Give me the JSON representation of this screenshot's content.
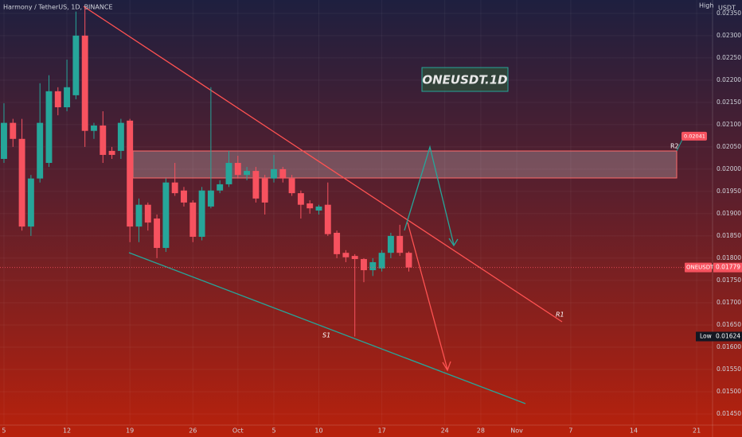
{
  "chart_data": {
    "type": "candlestick",
    "title": "Harmony / TetherUS, 1D, BINANCE",
    "annotation": "ONEUSDT.1D",
    "symbol": "ONEUSDT",
    "currency": "USDT",
    "high_label": "High",
    "low_label": "Low",
    "low_value": 0.01624,
    "last_price": 0.01779,
    "r2_value": 0.02041,
    "r1_label": "R1",
    "r2_label": "R2",
    "s1_label": "S1",
    "up_color": "#26a69a",
    "down_color": "#f7525f",
    "x": [
      0,
      1,
      2,
      3,
      4,
      5,
      6,
      7,
      8,
      9,
      10,
      11,
      12,
      13,
      14,
      15,
      16,
      17,
      18,
      19,
      20,
      21,
      22,
      23,
      24,
      25,
      26,
      27,
      28,
      29,
      30,
      31,
      32,
      33,
      34,
      35,
      36,
      37,
      38,
      39,
      40,
      41,
      42,
      43,
      44,
      45
    ],
    "open": [
      0.02023,
      0.02104,
      0.02068,
      0.01871,
      0.01979,
      0.02014,
      0.02175,
      0.02139,
      0.02166,
      0.023,
      0.02086,
      0.02098,
      0.02041,
      0.02041,
      0.02109,
      0.01871,
      0.0192,
      0.01889,
      0.01823,
      0.0197,
      0.01952,
      0.01925,
      0.01848,
      0.01916,
      0.01952,
      0.01966,
      0.02014,
      0.01987,
      0.01996,
      0.01979,
      0.01979,
      0.02,
      0.01979,
      0.01946,
      0.01923,
      0.01907,
      0.0192,
      0.01857,
      0.01812,
      0.01805,
      0.01798,
      0.01773,
      0.01777,
      0.01812,
      0.0185,
      0.01812
    ],
    "high": [
      0.02148,
      0.02113,
      0.02113,
      0.01987,
      0.02193,
      0.02211,
      0.02184,
      0.02246,
      0.02354,
      0.02363,
      0.02104,
      0.0213,
      0.0205,
      0.02113,
      0.02113,
      0.01934,
      0.01925,
      0.01898,
      0.01979,
      0.02014,
      0.0196,
      0.0193,
      0.0196,
      0.02184,
      0.01975,
      0.02041,
      0.0203,
      0.02005,
      0.02005,
      0.01987,
      0.02032,
      0.02005,
      0.01987,
      0.01952,
      0.0193,
      0.0192,
      0.0197,
      0.01862,
      0.01818,
      0.01809,
      0.018,
      0.018,
      0.01818,
      0.01857,
      0.01875,
      0.01815
    ],
    "low": [
      0.02014,
      0.0205,
      0.01862,
      0.0185,
      0.0197,
      0.02005,
      0.02121,
      0.0213,
      0.02157,
      0.0205,
      0.02068,
      0.02014,
      0.02023,
      0.02023,
      0.01836,
      0.01836,
      0.01862,
      0.018,
      0.01814,
      0.0194,
      0.01916,
      0.01836,
      0.0184,
      0.01912,
      0.01946,
      0.0196,
      0.01979,
      0.01975,
      0.01925,
      0.01898,
      0.0197,
      0.0197,
      0.0194,
      0.01889,
      0.019,
      0.01898,
      0.0185,
      0.018,
      0.01791,
      0.01624,
      0.01746,
      0.0176,
      0.0177,
      0.018,
      0.01805,
      0.0177
    ],
    "close": [
      0.02104,
      0.02068,
      0.01871,
      0.01979,
      0.02104,
      0.02175,
      0.02139,
      0.02184,
      0.023,
      0.02086,
      0.02098,
      0.02032,
      0.02032,
      0.02104,
      0.01871,
      0.0192,
      0.0188,
      0.01823,
      0.0197,
      0.01946,
      0.01925,
      0.01848,
      0.01952,
      0.01952,
      0.01966,
      0.02014,
      0.01987,
      0.01996,
      0.01934,
      0.01925,
      0.02,
      0.01979,
      0.01946,
      0.0192,
      0.01912,
      0.01916,
      0.01854,
      0.01809,
      0.01802,
      0.01798,
      0.01773,
      0.01791,
      0.01812,
      0.0185,
      0.01812,
      0.01779
    ],
    "xlim": [
      -0.44,
      78.76
    ],
    "ylim": [
      0.01425,
      0.0238
    ],
    "xticks": [
      {
        "value": 0,
        "label": "5"
      },
      {
        "value": 7,
        "label": "12"
      },
      {
        "value": 14,
        "label": "19"
      },
      {
        "value": 21,
        "label": "26"
      },
      {
        "value": 26,
        "label": "Oct"
      },
      {
        "value": 30,
        "label": "5"
      },
      {
        "value": 35,
        "label": "10"
      },
      {
        "value": 42,
        "label": "17"
      },
      {
        "value": 49,
        "label": "24"
      },
      {
        "value": 53,
        "label": "28"
      },
      {
        "value": 57,
        "label": "Nov"
      },
      {
        "value": 63,
        "label": "7"
      },
      {
        "value": 70,
        "label": "14"
      },
      {
        "value": 77,
        "label": "21"
      }
    ],
    "yticks": [
      {
        "value": 0.0145,
        "label": "0.01450"
      },
      {
        "value": 0.015,
        "label": "0.01500"
      },
      {
        "value": 0.0155,
        "label": "0.01550"
      },
      {
        "value": 0.016,
        "label": "0.01600"
      },
      {
        "value": 0.0165,
        "label": "0.01650"
      },
      {
        "value": 0.017,
        "label": "0.01700"
      },
      {
        "value": 0.0175,
        "label": "0.01750"
      },
      {
        "value": 0.018,
        "label": "0.01800"
      },
      {
        "value": 0.0185,
        "label": "0.01850"
      },
      {
        "value": 0.019,
        "label": "0.01900"
      },
      {
        "value": 0.0195,
        "label": "0.01950"
      },
      {
        "value": 0.02,
        "label": "0.02000"
      },
      {
        "value": 0.0205,
        "label": "0.02050"
      },
      {
        "value": 0.021,
        "label": "0.02100"
      },
      {
        "value": 0.0215,
        "label": "0.02150"
      },
      {
        "value": 0.022,
        "label": "0.02200"
      },
      {
        "value": 0.0225,
        "label": "0.02250"
      },
      {
        "value": 0.023,
        "label": "0.02300"
      },
      {
        "value": 0.0235,
        "label": "0.02350"
      }
    ]
  }
}
